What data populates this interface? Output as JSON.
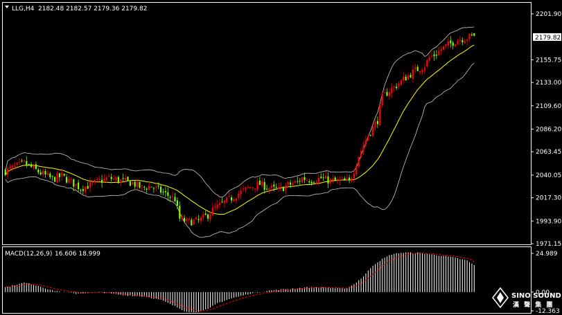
{
  "header": {
    "symbol": "LLG,H4",
    "ohlc": "2182.48 2182.57 2179.36 2179.82"
  },
  "macd_header": {
    "label": "MACD(12,26,9)",
    "values": "16.606 18.999"
  },
  "price_axis": {
    "ticks": [
      "2201.90",
      "2179.82",
      "2155.75",
      "2133.00",
      "2109.60",
      "2086.20",
      "2063.45",
      "2040.05",
      "2017.30",
      "1993.90",
      "1971.15"
    ],
    "current": "2179.82"
  },
  "macd_axis": {
    "ticks": [
      "24.989",
      "0.00",
      "-12.363"
    ]
  },
  "logo": {
    "line1": "SINO SOUND",
    "line2": "漢 聲 集 團"
  },
  "colors": {
    "background": "#000000",
    "bull": "#ff0000",
    "bear": "#7cfc00",
    "ma": "#ffff00",
    "bands": "#c8c8c8",
    "macd_hist": "#ffffff",
    "macd_signal": "#ff0000"
  },
  "chart_data": {
    "type": "candlestick",
    "title": "LLG,H4",
    "ylim": [
      1971.15,
      2201.9
    ],
    "indicators": [
      "Bollinger Bands",
      "Moving Average",
      "MACD(12,26,9)"
    ],
    "price_path": [
      [
        0,
        2044
      ],
      [
        8,
        2052
      ],
      [
        15,
        2042
      ],
      [
        20,
        2036
      ],
      [
        24,
        2039
      ],
      [
        28,
        2033
      ],
      [
        32,
        2027
      ],
      [
        36,
        2030
      ],
      [
        40,
        2034
      ],
      [
        44,
        2037
      ],
      [
        48,
        2035
      ],
      [
        54,
        2032
      ],
      [
        58,
        2027
      ],
      [
        62,
        2029
      ],
      [
        68,
        2021
      ],
      [
        72,
        2016
      ],
      [
        74,
        1996
      ],
      [
        77,
        1993
      ],
      [
        82,
        1994
      ],
      [
        86,
        2000
      ],
      [
        88,
        2005
      ],
      [
        92,
        2011
      ],
      [
        96,
        2017
      ],
      [
        100,
        2023
      ],
      [
        104,
        2028
      ],
      [
        108,
        2031
      ],
      [
        112,
        2027
      ],
      [
        116,
        2025
      ],
      [
        120,
        2030
      ],
      [
        124,
        2033
      ],
      [
        126,
        2037
      ],
      [
        130,
        2035
      ],
      [
        134,
        2037
      ],
      [
        138,
        2034
      ],
      [
        142,
        2034
      ],
      [
        146,
        2033
      ],
      [
        148,
        2045
      ],
      [
        150,
        2060
      ],
      [
        154,
        2080
      ],
      [
        158,
        2095
      ],
      [
        160,
        2118
      ],
      [
        163,
        2125
      ],
      [
        166,
        2130
      ],
      [
        170,
        2138
      ],
      [
        174,
        2145
      ],
      [
        178,
        2150
      ],
      [
        180,
        2158
      ],
      [
        183,
        2162
      ],
      [
        186,
        2168
      ],
      [
        189,
        2172
      ],
      [
        192,
        2176
      ],
      [
        194,
        2177
      ],
      [
        196,
        2178
      ],
      [
        199,
        2179.82
      ]
    ],
    "macd_path": [
      [
        0,
        3
      ],
      [
        8,
        6
      ],
      [
        14,
        4
      ],
      [
        20,
        1
      ],
      [
        30,
        -1
      ],
      [
        40,
        0
      ],
      [
        50,
        -2
      ],
      [
        60,
        -3
      ],
      [
        66,
        -5
      ],
      [
        72,
        -9
      ],
      [
        76,
        -12
      ],
      [
        80,
        -13
      ],
      [
        86,
        -11
      ],
      [
        90,
        -7
      ],
      [
        96,
        -4
      ],
      [
        104,
        -1
      ],
      [
        112,
        1
      ],
      [
        120,
        2
      ],
      [
        128,
        3
      ],
      [
        136,
        3
      ],
      [
        144,
        2
      ],
      [
        148,
        5
      ],
      [
        152,
        10
      ],
      [
        156,
        17
      ],
      [
        160,
        21
      ],
      [
        164,
        24
      ],
      [
        168,
        25
      ],
      [
        172,
        25
      ],
      [
        176,
        25
      ],
      [
        180,
        24
      ],
      [
        186,
        23
      ],
      [
        190,
        22
      ],
      [
        196,
        20
      ],
      [
        199,
        17
      ]
    ],
    "macd_ylim": [
      -12.363,
      24.989
    ],
    "macd_last": {
      "macd": 16.606,
      "signal": 18.999
    }
  }
}
